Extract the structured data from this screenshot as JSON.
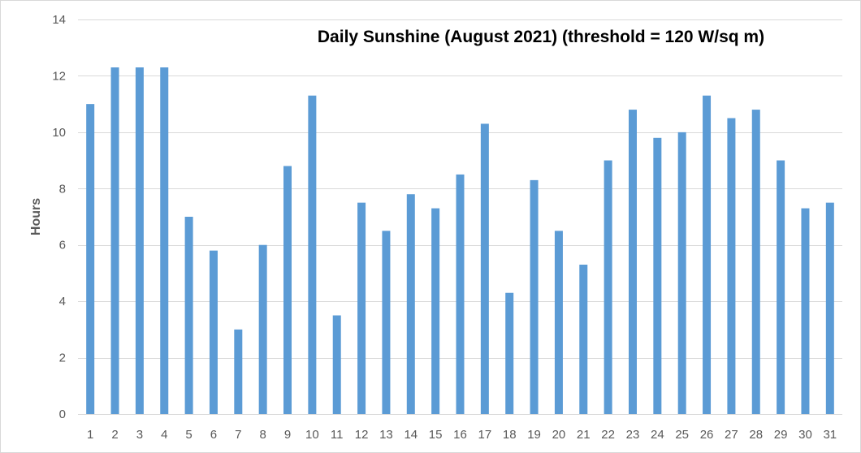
{
  "chart_data": {
    "type": "bar",
    "title": "Daily Sunshine (August 2021) (threshold = 120 W/sq m)",
    "xlabel": "",
    "ylabel": "Hours",
    "ylim": [
      0,
      14
    ],
    "yticks": [
      0,
      2,
      4,
      6,
      8,
      10,
      12,
      14
    ],
    "grid": true,
    "legend": "none",
    "bar_color": "#5b9bd5",
    "categories": [
      "1",
      "2",
      "3",
      "4",
      "5",
      "6",
      "7",
      "8",
      "9",
      "10",
      "11",
      "12",
      "13",
      "14",
      "15",
      "16",
      "17",
      "18",
      "19",
      "20",
      "21",
      "22",
      "23",
      "24",
      "25",
      "26",
      "27",
      "28",
      "29",
      "30",
      "31"
    ],
    "series": [
      {
        "values": [
          11.0,
          12.3,
          12.3,
          12.3,
          7.0,
          5.8,
          3.0,
          6.0,
          8.8,
          11.3,
          3.5,
          7.5,
          6.5,
          7.8,
          7.3,
          8.5,
          10.3,
          4.3,
          8.3,
          6.5,
          5.3,
          9.0,
          10.8,
          9.8,
          10.0,
          11.3,
          10.5,
          10.8,
          9.0,
          7.3,
          7.5
        ]
      }
    ]
  }
}
